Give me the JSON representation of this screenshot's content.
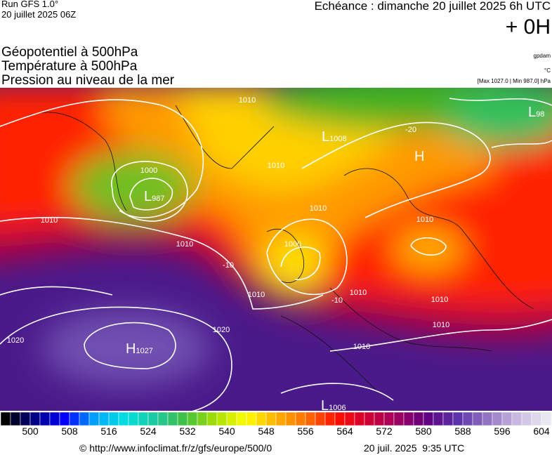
{
  "header": {
    "run": "Run GFS 1.0°",
    "run_date": "20 juillet 2025 06Z",
    "echeance": "Echéance : dimanche 20 juillet 2025 6h UTC",
    "offset": "+ 0H",
    "fields": [
      "Géopotentiel à 500hPa",
      "Température à 500hPa",
      "Pression au niveau de la mer"
    ],
    "units": [
      "gpdam",
      "°C",
      "[Max 1027.0 | Min 987.0] hPa"
    ]
  },
  "map": {
    "systems": [
      {
        "letter": "H",
        "value": "1027"
      },
      {
        "letter": "L",
        "value": "987"
      },
      {
        "letter": "L",
        "value": "1008"
      },
      {
        "letter": "H"
      },
      {
        "letter": "L",
        "value": "1006"
      },
      {
        "letter": "L",
        "value": "98"
      }
    ],
    "isobar_labels": [
      1010,
      1000,
      1010,
      1010,
      1010,
      1010,
      1000,
      1010,
      1010,
      1010,
      1010,
      1010,
      1010,
      1020,
      1020
    ],
    "temperature_labels": [
      -20,
      -10,
      -10
    ]
  },
  "colorbar": {
    "lim": [
      494,
      606
    ],
    "ticks": [
      500,
      508,
      516,
      524,
      532,
      540,
      548,
      556,
      564,
      572,
      580,
      588,
      596,
      604
    ],
    "colors": [
      "#000000",
      "#00008a",
      "#0000ff",
      "#00a8ff",
      "#00e0e0",
      "#20c8a0",
      "#40c040",
      "#a8e000",
      "#ffff00",
      "#ffb000",
      "#ff7000",
      "#ff1000",
      "#d00030",
      "#a00060",
      "#600080",
      "#5a30a8",
      "#9070c0",
      "#c8b8e0",
      "#e8e8f0"
    ]
  },
  "footer": {
    "url": "© http://www.infoclimat.fr/z/gfs/europe/500/0",
    "time": "20 juil. 2025  9:35 UTC"
  }
}
